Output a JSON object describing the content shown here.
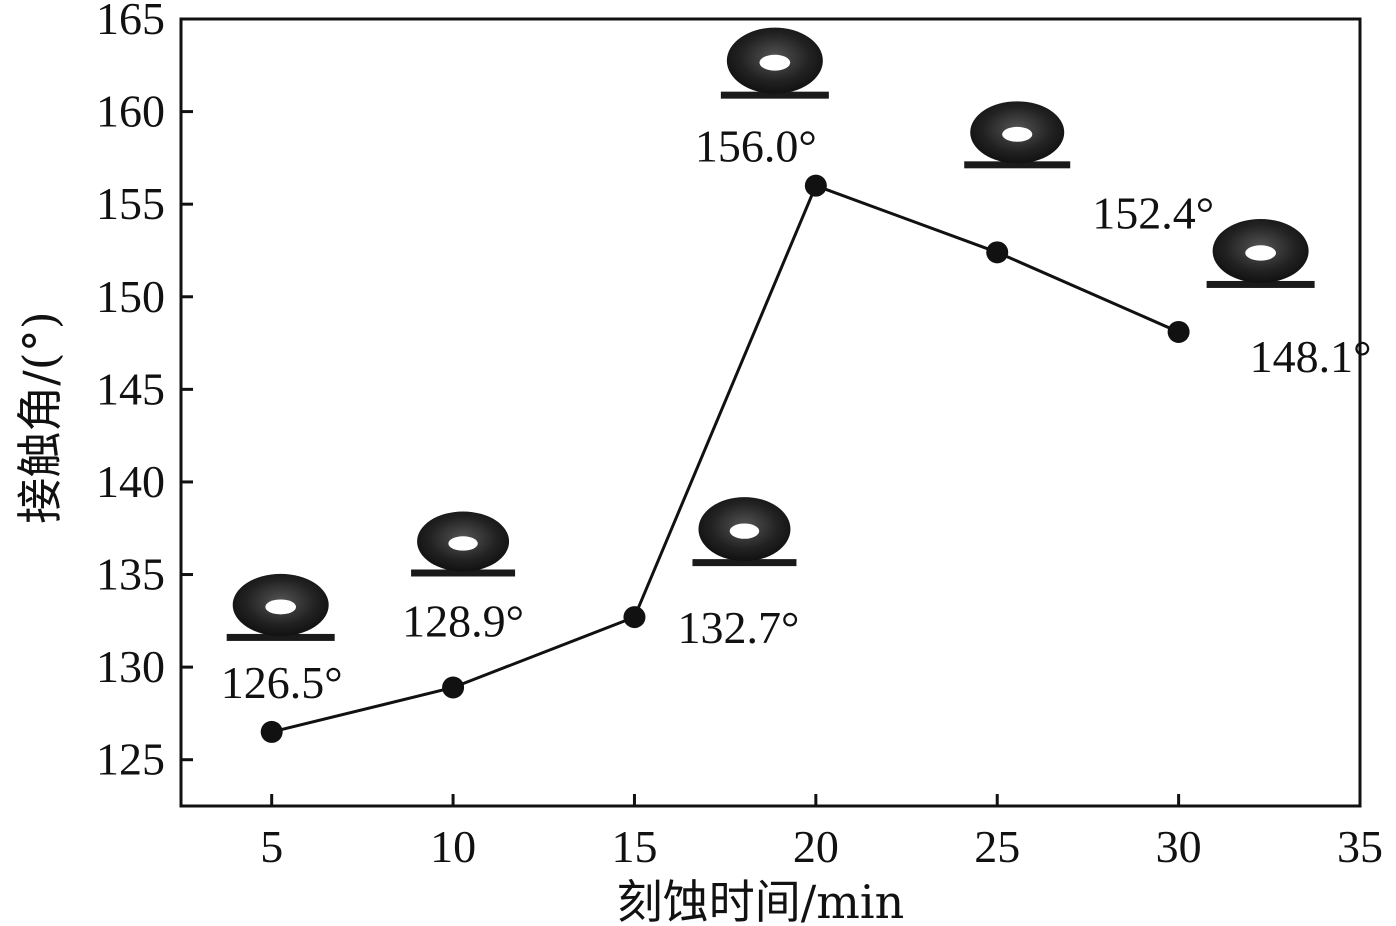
{
  "chart_data": {
    "type": "line",
    "title": "",
    "xlabel": "刻蚀时间/min",
    "ylabel": "接触角/(°)",
    "xlim": [
      2.5,
      35
    ],
    "ylim": [
      122.5,
      165
    ],
    "x_ticks": [
      "5",
      "10",
      "15",
      "20",
      "25",
      "30",
      "35"
    ],
    "y_ticks": [
      "125",
      "130",
      "135",
      "140",
      "145",
      "150",
      "155",
      "160",
      "165"
    ],
    "grid": false,
    "legend": "none",
    "series": [
      {
        "x": [
          5,
          10,
          15,
          20,
          25,
          30
        ],
        "y": [
          126.5,
          128.9,
          132.7,
          156.0,
          152.4,
          148.1
        ],
        "labels": [
          "126.5°",
          "128.9°",
          "132.7°",
          "156.0°",
          "152.4°",
          "148.1°"
        ]
      }
    ],
    "annotations": "water droplet images above each data point",
    "colors": {
      "line": "#111111",
      "marker": "#111111",
      "droplet": "#1a1a1a"
    }
  }
}
